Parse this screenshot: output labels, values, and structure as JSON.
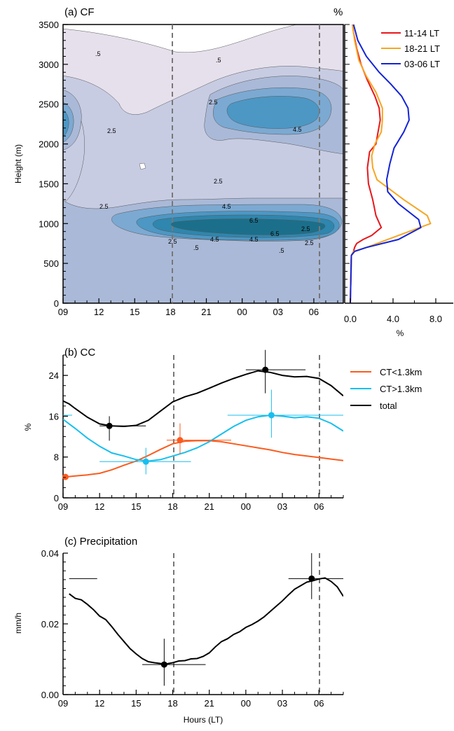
{
  "chart_data": [
    {
      "type": "heatmap",
      "panel_label": "(a) CF",
      "ylabel": "Height (m)",
      "unit_label": "%",
      "x_ticks": [
        "09",
        "12",
        "15",
        "18",
        "21",
        "00",
        "03",
        "06"
      ],
      "y_ticks": [
        "0",
        "500",
        "1000",
        "1500",
        "2000",
        "2500",
        "3000",
        "3500"
      ],
      "ylim": [
        0,
        3500
      ],
      "dashed_lines_at": [
        "18",
        "06"
      ],
      "contour_labels": [
        ".5",
        ".5",
        "2.5",
        "2.5",
        "2.5",
        "4.5",
        "2.5",
        "2.5",
        "4.5",
        "6.5",
        "6.5",
        "4.5",
        "4.5",
        "2.5",
        ".5",
        ".5",
        "2.5"
      ],
      "colors": [
        "#e6e0ec",
        "#c7cce3",
        "#aab9d7",
        "#7ba9d2",
        "#4d97c4",
        "#2f86ae",
        "#1c6f8a"
      ]
    },
    {
      "type": "line",
      "xlabel": "%",
      "x_ticks": [
        "0.0",
        "4.0",
        "8.0"
      ],
      "xlim": [
        0,
        8.5
      ],
      "ylim": [
        0,
        3500
      ],
      "series": [
        {
          "name": "11-14 LT",
          "color": "#e8161b",
          "x": [
            0.0,
            0.1,
            0.3,
            0.4,
            0.6,
            1.2,
            2.0,
            2.9,
            2.4,
            2.1,
            1.7,
            1.6,
            1.8,
            2.4,
            2.6,
            2.8,
            2.7,
            2.3,
            1.6,
            1.0,
            0.6,
            0.3,
            0.2
          ],
          "y": [
            0,
            600,
            650,
            700,
            750,
            800,
            850,
            950,
            1100,
            1300,
            1500,
            1700,
            1900,
            2000,
            2150,
            2300,
            2450,
            2600,
            2800,
            3000,
            3200,
            3400,
            3500
          ]
        },
        {
          "name": "18-21 LT",
          "color": "#f6a623",
          "x": [
            0.0,
            0.1,
            0.3,
            1.5,
            4.5,
            7.5,
            7.2,
            5.0,
            3.5,
            2.5,
            2.1,
            2.0,
            2.3,
            2.9,
            3.0,
            3.0,
            2.4,
            1.5,
            0.8,
            0.4,
            0.2
          ],
          "y": [
            0,
            600,
            650,
            700,
            850,
            1000,
            1100,
            1300,
            1450,
            1550,
            1700,
            1850,
            2000,
            2150,
            2300,
            2450,
            2650,
            2850,
            3050,
            3300,
            3500
          ]
        },
        {
          "name": "03-06 LT",
          "color": "#1424d6",
          "x": [
            0.0,
            0.1,
            0.4,
            1.5,
            4.5,
            6.6,
            6.4,
            4.5,
            3.5,
            3.4,
            3.7,
            4.1,
            5.0,
            5.5,
            5.4,
            4.8,
            3.8,
            2.7,
            1.5,
            0.7,
            0.3
          ],
          "y": [
            0,
            600,
            650,
            700,
            800,
            950,
            1050,
            1250,
            1400,
            1550,
            1750,
            1950,
            2150,
            2300,
            2450,
            2600,
            2750,
            2900,
            3100,
            3300,
            3500
          ]
        }
      ]
    },
    {
      "type": "line",
      "panel_label": "(b) CC",
      "ylabel": "%",
      "x_ticks": [
        "09",
        "12",
        "15",
        "18",
        "21",
        "00",
        "03",
        "06"
      ],
      "y_ticks": [
        "0",
        "8",
        "16",
        "24"
      ],
      "ylim": [
        0,
        28
      ],
      "xlim": [
        9,
        32
      ],
      "dashed_lines_at": [
        "18",
        "06"
      ],
      "series": [
        {
          "name": "CT<1.3km",
          "color": "#fb5b1e",
          "x": [
            9.2,
            10,
            11,
            12,
            13,
            14,
            15,
            16,
            17,
            18,
            19,
            20,
            21,
            22,
            23,
            24,
            25,
            26,
            27,
            28,
            29,
            30,
            31,
            32
          ],
          "y": [
            4.1,
            4.3,
            4.5,
            4.8,
            5.5,
            6.4,
            7.2,
            8.3,
            9.5,
            10.6,
            11.1,
            11.2,
            11.2,
            11.0,
            10.6,
            10.2,
            9.8,
            9.4,
            8.9,
            8.5,
            8.2,
            7.9,
            7.6,
            7.3
          ],
          "marker": {
            "x": 18.6,
            "y": 11.3,
            "xerr": [
              17.5,
              22.8
            ],
            "yerr": [
              8.6,
              14.6
            ]
          },
          "marker_start": {
            "x": 9.2,
            "y": 4.1
          }
        },
        {
          "name": "CT>1.3km",
          "color": "#18bfee",
          "x": [
            9.0,
            9.5,
            10,
            11,
            12,
            13,
            14,
            15,
            16,
            17,
            18,
            19,
            20,
            21,
            22,
            23,
            24,
            25,
            26,
            27,
            28,
            29,
            30,
            31,
            32
          ],
          "y": [
            15.4,
            14.5,
            13.6,
            11.7,
            10.1,
            8.8,
            8.2,
            7.5,
            7.2,
            7.5,
            8.2,
            8.9,
            9.8,
            11.0,
            12.5,
            14.0,
            15.2,
            15.9,
            16.2,
            16.0,
            15.7,
            15.9,
            15.6,
            14.6,
            13.1
          ],
          "marker": {
            "x": 15.8,
            "y": 7.1,
            "xerr": [
              12.0,
              19.5
            ],
            "yerr": [
              4.6,
              9.8
            ]
          },
          "marker2": {
            "x": 26.1,
            "y": 16.2,
            "xerr": [
              22.5,
              32.0
            ],
            "yerr": [
              11.8,
              21.2
            ]
          },
          "marker_start": {
            "x": 8.6,
            "y": 16.2
          }
        },
        {
          "name": "total",
          "color": "#000000",
          "x": [
            9.0,
            9.5,
            10,
            11,
            12,
            13,
            14,
            15,
            16,
            17,
            18,
            19,
            20,
            21,
            22,
            23,
            24,
            25,
            26,
            27,
            28,
            29,
            30,
            31,
            32
          ],
          "y": [
            19.0,
            18.4,
            17.5,
            15.8,
            14.5,
            14.1,
            14.0,
            14.2,
            15.2,
            17.0,
            18.8,
            19.8,
            20.5,
            21.5,
            22.5,
            23.4,
            24.2,
            24.9,
            24.6,
            24.0,
            23.7,
            23.8,
            23.4,
            22.0,
            20.0
          ],
          "marker": {
            "x": 12.8,
            "y": 14.1,
            "xerr": [
              12.0,
              15.8
            ],
            "yerr": [
              11.2,
              16.0
            ]
          },
          "marker2": {
            "x": 25.6,
            "y": 25.1,
            "xerr": [
              24.0,
              28.9
            ],
            "yerr": [
              20.5,
              29.0
            ]
          }
        }
      ]
    },
    {
      "type": "line",
      "panel_label": "(c) Precipitation",
      "xlabel": "Hours (LT)",
      "ylabel": "mm/h",
      "x_ticks": [
        "09",
        "12",
        "15",
        "18",
        "21",
        "00",
        "03",
        "06"
      ],
      "y_ticks": [
        "0.00",
        "0.02",
        "0.04"
      ],
      "ylim": [
        0,
        0.04
      ],
      "xlim": [
        9,
        32
      ],
      "dashed_lines_at": [
        "18",
        "06"
      ],
      "series": [
        {
          "name": "",
          "color": "#000000",
          "x": [
            9.5,
            10,
            10.5,
            11,
            11.5,
            12,
            12.5,
            13,
            13.5,
            14,
            14.5,
            15,
            15.5,
            16,
            16.5,
            17,
            17.5,
            18,
            18.5,
            19,
            19.5,
            20,
            20.5,
            21,
            21.5,
            22,
            22.5,
            23,
            23.5,
            24,
            24.5,
            25,
            25.5,
            26,
            26.5,
            27,
            27.5,
            28,
            28.5,
            29,
            29.5,
            30,
            30.5,
            31,
            31.5,
            32
          ],
          "y": [
            0.0285,
            0.0272,
            0.0268,
            0.0255,
            0.024,
            0.0222,
            0.0212,
            0.0192,
            0.017,
            0.015,
            0.013,
            0.0115,
            0.0102,
            0.0093,
            0.009,
            0.0088,
            0.0087,
            0.009,
            0.0095,
            0.0096,
            0.0101,
            0.0102,
            0.0108,
            0.0118,
            0.0135,
            0.015,
            0.0158,
            0.017,
            0.0178,
            0.019,
            0.0198,
            0.0208,
            0.022,
            0.0235,
            0.025,
            0.0265,
            0.0282,
            0.0298,
            0.0308,
            0.0318,
            0.0322,
            0.0327,
            0.033,
            0.032,
            0.0305,
            0.0278
          ],
          "marker": {
            "x": 17.3,
            "y": 0.0085,
            "xerr": [
              15.5,
              20.7
            ],
            "yerr": [
              0.0025,
              0.0158
            ]
          },
          "marker2": {
            "x": 29.4,
            "y": 0.0328,
            "xerr": [
              27.5,
              32.0
            ],
            "yerr": [
              0.027,
              0.04
            ]
          },
          "side_mark": {
            "x": [
              9.5,
              11.8
            ],
            "y": 0.0328
          }
        }
      ]
    }
  ]
}
